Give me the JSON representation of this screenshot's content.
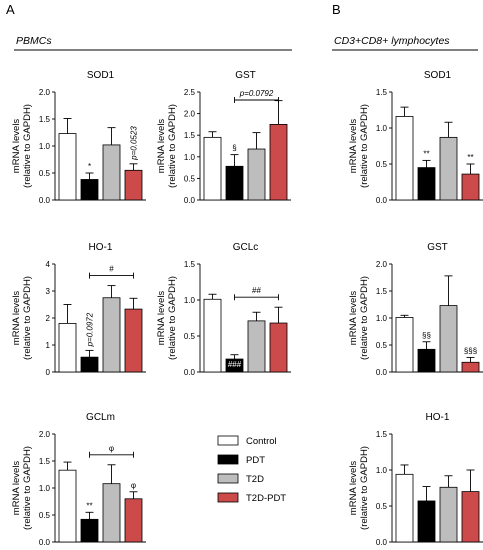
{
  "panel_labels": [
    "A",
    "B"
  ],
  "section_titles": {
    "a": "PBMCs",
    "b": "CD3+CD8+ lymphocytes"
  },
  "legend": {
    "placement": "bottom-center",
    "items": [
      {
        "label": "Control",
        "color": "#ffffff"
      },
      {
        "label": "PDT",
        "color": "#000000"
      },
      {
        "label": "T2D",
        "color": "#bdbdbd"
      },
      {
        "label": "T2D-PDT",
        "color": "#cc4a4a"
      }
    ]
  },
  "chart_data": [
    {
      "id": "sod1-pbmc",
      "type": "bar",
      "title": "SOD1",
      "ylabel": [
        "mRNA levels",
        "(relative to GAPDH)"
      ],
      "ylim": [
        0,
        2
      ],
      "yticks": [
        "0.0",
        "0.5",
        "1.0",
        "1.5",
        "2.0"
      ],
      "categories": [
        "Control",
        "PDT",
        "T2D",
        "T2D-PDT"
      ],
      "values": [
        1.23,
        0.38,
        1.02,
        0.55
      ],
      "errors": [
        0.28,
        0.12,
        0.32,
        0.12
      ],
      "bar_annotations": [
        "",
        "*",
        "",
        "p=0.0523"
      ],
      "brackets": []
    },
    {
      "id": "gst-pbmc",
      "type": "bar",
      "title": "GST",
      "ylabel": [
        "mRNA levels",
        "(relative to GAPDH)"
      ],
      "ylim": [
        0,
        2.5
      ],
      "yticks": [
        "0.0",
        "0.5",
        "1.0",
        "1.5",
        "2.0",
        "2.5"
      ],
      "categories": [
        "Control",
        "PDT",
        "T2D",
        "T2D-PDT"
      ],
      "values": [
        1.45,
        0.78,
        1.18,
        1.75
      ],
      "errors": [
        0.13,
        0.27,
        0.38,
        0.55
      ],
      "bar_annotations": [
        "",
        "§",
        "",
        ""
      ],
      "brackets": [
        {
          "from": 1,
          "to": 3,
          "label": "p=0.0792"
        }
      ]
    },
    {
      "id": "ho1-pbmc",
      "type": "bar",
      "title": "HO-1",
      "ylabel": [
        "mRNA levels",
        "(relative to GAPDH)"
      ],
      "ylim": [
        0,
        4
      ],
      "yticks": [
        "0",
        "1",
        "2",
        "3",
        "4"
      ],
      "categories": [
        "Control",
        "PDT",
        "T2D",
        "T2D-PDT"
      ],
      "values": [
        1.8,
        0.55,
        2.75,
        2.33
      ],
      "errors": [
        0.7,
        0.25,
        0.45,
        0.4
      ],
      "bar_annotations": [
        "",
        "p=0.0972",
        "",
        ""
      ],
      "brackets": [
        {
          "from": 1,
          "to": 3,
          "label": "#"
        }
      ]
    },
    {
      "id": "gclc-pbmc",
      "type": "bar",
      "title": "GCLc",
      "ylabel": [
        "mRNA levels",
        "(relative to GAPDH)"
      ],
      "ylim": [
        0,
        1.5
      ],
      "yticks": [
        "0.0",
        "0.5",
        "1.0",
        "1.5"
      ],
      "categories": [
        "Control",
        "PDT",
        "T2D",
        "T2D-PDT"
      ],
      "values": [
        1.01,
        0.18,
        0.71,
        0.68
      ],
      "errors": [
        0.07,
        0.06,
        0.12,
        0.22
      ],
      "bar_annotations": [
        "",
        "###",
        "",
        ""
      ],
      "brackets": [
        {
          "from": 1,
          "to": 3,
          "label": "##"
        }
      ]
    },
    {
      "id": "gclm-pbmc",
      "type": "bar",
      "title": "GCLm",
      "ylabel": [
        "mRNA levels",
        "(relative to GAPDH)"
      ],
      "ylim": [
        0,
        2
      ],
      "yticks": [
        "0.0",
        "0.5",
        "1.0",
        "1.5",
        "2.0"
      ],
      "categories": [
        "Control",
        "PDT",
        "T2D",
        "T2D-PDT"
      ],
      "values": [
        1.33,
        0.42,
        1.08,
        0.8
      ],
      "errors": [
        0.15,
        0.13,
        0.35,
        0.13
      ],
      "bar_annotations": [
        "",
        "**",
        "",
        "φ"
      ],
      "brackets": [
        {
          "from": 1,
          "to": 3,
          "label": "φ"
        }
      ]
    },
    {
      "id": "sod1-cd8",
      "type": "bar",
      "title": "SOD1",
      "ylabel": [
        "mRNA levels",
        "(relative to GAPDH)"
      ],
      "ylim": [
        0,
        1.5
      ],
      "yticks": [
        "0.0",
        "0.5",
        "1.0",
        "1.5"
      ],
      "categories": [
        "Control",
        "PDT",
        "T2D",
        "T2D-PDT"
      ],
      "values": [
        1.16,
        0.45,
        0.87,
        0.36
      ],
      "errors": [
        0.13,
        0.1,
        0.21,
        0.14
      ],
      "bar_annotations": [
        "",
        "**",
        "",
        "**"
      ],
      "brackets": []
    },
    {
      "id": "gst-cd8",
      "type": "bar",
      "title": "GST",
      "ylabel": [
        "mRNA levels",
        "(relative to GAPDH)"
      ],
      "ylim": [
        0,
        2
      ],
      "yticks": [
        "0.0",
        "0.5",
        "1.0",
        "1.5",
        "2.0"
      ],
      "categories": [
        "Control",
        "PDT",
        "T2D",
        "T2D-PDT"
      ],
      "values": [
        1.01,
        0.42,
        1.23,
        0.18
      ],
      "errors": [
        0.04,
        0.14,
        0.55,
        0.09
      ],
      "bar_annotations": [
        "",
        "§§",
        "",
        "§§§"
      ],
      "brackets": []
    },
    {
      "id": "ho1-cd8",
      "type": "bar",
      "title": "HO-1",
      "ylabel": [
        "mRNA levels",
        "(relative to GAPDH)"
      ],
      "ylim": [
        0,
        1.5
      ],
      "yticks": [
        "0.0",
        "0.5",
        "1.0",
        "1.5"
      ],
      "categories": [
        "Control",
        "PDT",
        "T2D",
        "T2D-PDT"
      ],
      "values": [
        0.94,
        0.57,
        0.76,
        0.7
      ],
      "errors": [
        0.13,
        0.2,
        0.16,
        0.3
      ],
      "bar_annotations": [
        "",
        "",
        "",
        ""
      ],
      "brackets": []
    }
  ]
}
